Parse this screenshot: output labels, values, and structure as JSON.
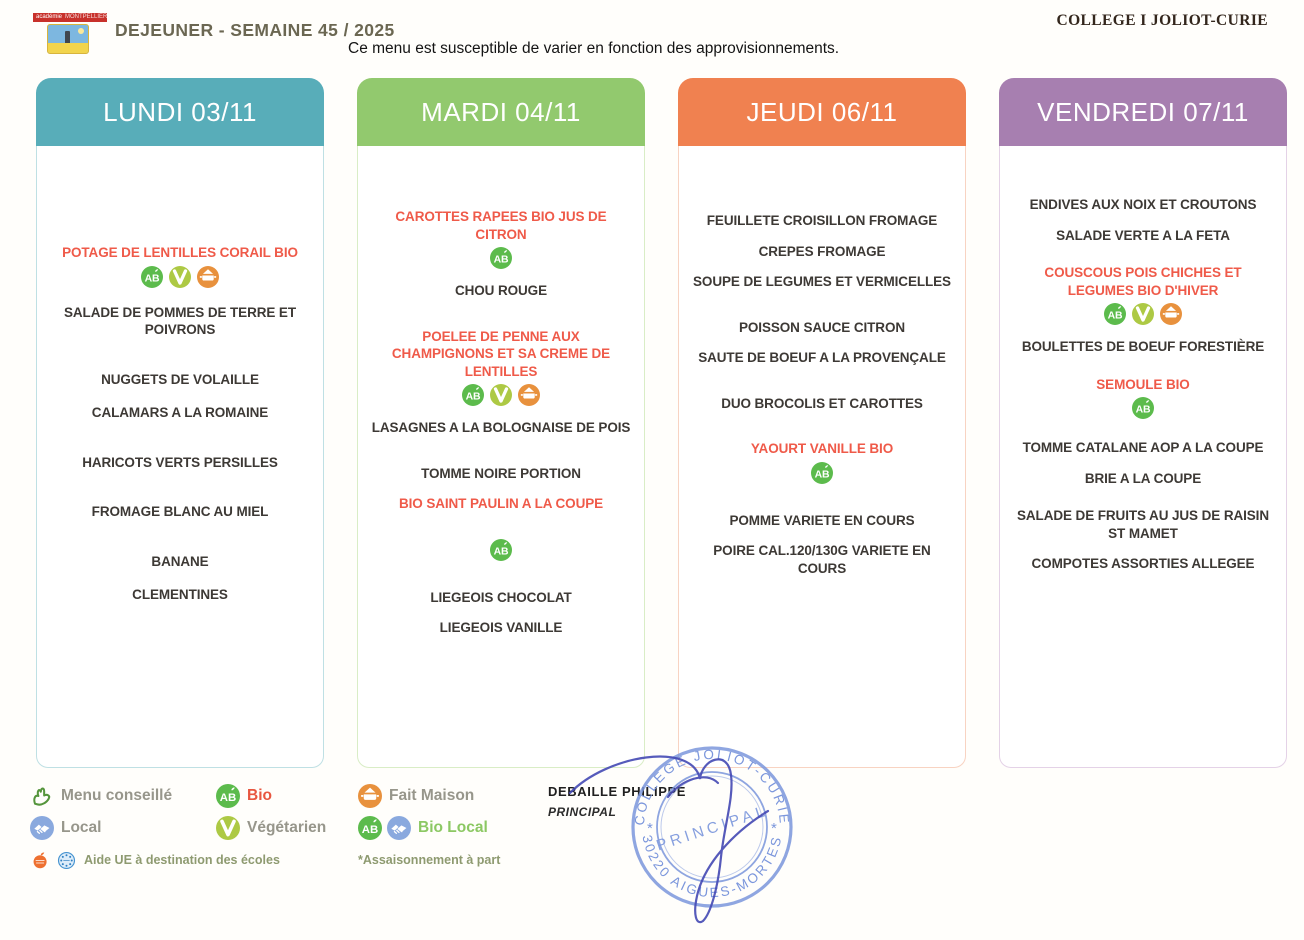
{
  "header": {
    "logo": {
      "academie": "académie",
      "ville": "MONTPELLIER"
    },
    "title": "DEJEUNER - SEMAINE 45 / 2025",
    "subtitle": "Ce menu est susceptible de varier en fonction des approvisionnements.",
    "school": "COLLEGE I JOLIOT-CURIE"
  },
  "colors": {
    "lundi_header": "#58adb9",
    "mardi_header": "#92c96e",
    "jeudi_header": "#f08150",
    "vendredi_header": "#a77fb0",
    "highlight_text": "#ef5a49",
    "normal_text": "#3d3935",
    "bio_icon": "#5cbb4c",
    "vegetarian_icon": "#adc944",
    "fait_maison_icon": "#e8913d",
    "local_icon": "#8aa9de",
    "peche_durable_icon": "#2d6db2",
    "stamp_blue": "#7b96dc"
  },
  "columns": [
    {
      "id": "lundi",
      "label": "LUNDI 03/11",
      "header_color": "#58adb9",
      "border_color": "#bfe0e4",
      "groups": [
        [
          {
            "text": "POTAGE DE LENTILLES CORAIL BIO",
            "highlight": true,
            "icons": [
              "bio",
              "vegetarian",
              "fait-maison"
            ]
          },
          {
            "text": "SALADE DE POMMES DE TERRE ET POIVRONS",
            "icons": [
              "vegetarian",
              "fait-maison"
            ],
            "icons_inline": true
          }
        ],
        [
          {
            "text": "NUGGETS DE VOLAILLE"
          },
          {
            "text": "CALAMARS A LA ROMAINE"
          }
        ],
        [
          {
            "text": "HARICOTS VERTS PERSILLES"
          }
        ],
        [
          {
            "text": "FROMAGE BLANC AU MIEL"
          }
        ],
        [
          {
            "text": "BANANE"
          },
          {
            "text": "CLEMENTINES"
          }
        ]
      ]
    },
    {
      "id": "mardi",
      "label": "MARDI 04/11",
      "header_color": "#92c96e",
      "border_color": "#d9edc6",
      "groups": [
        [
          {
            "text": "CAROTTES RAPEES BIO JUS DE CITRON",
            "highlight": true,
            "icons": [
              "bio"
            ]
          },
          {
            "text": "CHOU ROUGE"
          }
        ],
        [
          {
            "text": "POELEE DE PENNE AUX CHAMPIGNONS ET SA CREME DE LENTILLES",
            "highlight": true,
            "icons": [
              "bio",
              "vegetarian",
              "fait-maison"
            ]
          },
          {
            "text": "LASAGNES A LA BOLOGNAISE DE POIS",
            "icons": [
              "vegetarian",
              "fait-maison"
            ],
            "icons_inline": true
          }
        ],
        [
          {
            "text": "TOMME NOIRE PORTION"
          },
          {
            "text": "BIO SAINT PAULIN A LA COUPE",
            "highlight": true,
            "icons": [
              "bio"
            ],
            "icon_gap": true
          }
        ],
        [
          {
            "text": "LIEGEOIS CHOCOLAT"
          },
          {
            "text": "LIEGEOIS VANILLE"
          }
        ]
      ]
    },
    {
      "id": "jeudi",
      "label": "JEUDI 06/11",
      "header_color": "#f08150",
      "border_color": "#f8d3c2",
      "groups": [
        [
          {
            "text": "FEUILLETE CROISILLON FROMAGE"
          },
          {
            "text": "CREPES FROMAGE"
          },
          {
            "text": "SOUPE DE LEGUMES ET VERMICELLES"
          }
        ],
        [
          {
            "text": "POISSON SAUCE CITRON",
            "icons": [
              "peche-durable"
            ],
            "icons_inline": true
          },
          {
            "text": "SAUTE DE BOEUF A LA PROVENÇALE",
            "icons": [
              "fait-maison"
            ],
            "icons_inline": true
          }
        ],
        [
          {
            "text": "DUO BROCOLIS ET CAROTTES"
          }
        ],
        [
          {
            "text": "YAOURT VANILLE BIO",
            "highlight": true,
            "icons": [
              "bio"
            ]
          }
        ],
        [
          {
            "text": "POMME VARIETE EN COURS"
          },
          {
            "text": "POIRE CAL.120/130G VARIETE EN COURS"
          }
        ]
      ]
    },
    {
      "id": "vendredi",
      "label": "VENDREDI 07/11",
      "header_color": "#a77fb0",
      "border_color": "#e4d2e7",
      "groups": [
        [
          {
            "text": "ENDIVES AUX NOIX ET CROUTONS"
          },
          {
            "text": "SALADE VERTE A LA FETA",
            "icons": [
              "fait-maison",
              "aop"
            ],
            "icons_inline": true
          }
        ],
        [
          {
            "text": "COUSCOUS POIS CHICHES ET LEGUMES BIO D'HIVER",
            "highlight": true,
            "icons": [
              "bio",
              "vegetarian",
              "fait-maison"
            ]
          },
          {
            "text": "BOULETTES DE BOEUF FORESTIÈRE"
          }
        ],
        [
          {
            "text": "SEMOULE BIO",
            "highlight": true,
            "icons": [
              "bio"
            ]
          }
        ],
        [
          {
            "text": "TOMME CATALANE AOP A LA COUPE",
            "icons": [
              "aop"
            ],
            "icons_inline": true
          },
          {
            "text": "BRIE A LA COUPE"
          }
        ],
        [
          {
            "text": "SALADE DE FRUITS AU JUS DE RAISIN ST MAMET",
            "icons": [
              "local"
            ],
            "icons_inline": true
          },
          {
            "text": "COMPOTES ASSORTIES ALLEGEE"
          }
        ]
      ]
    }
  ],
  "legend": {
    "items": [
      {
        "id": "menu-conseille",
        "label": "Menu conseillé"
      },
      {
        "id": "bio",
        "label": "Bio",
        "label_color": "#e8563f"
      },
      {
        "id": "fait-maison",
        "label": "Fait Maison"
      },
      {
        "id": "local",
        "label": "Local"
      },
      {
        "id": "vegetarien",
        "label": "Végétarien"
      },
      {
        "id": "bio-local",
        "label": "Bio Local",
        "label_color": "#8cc863"
      },
      {
        "id": "aide-ue",
        "label": "Aide UE à destination des écoles"
      },
      {
        "id": "assaisonnement",
        "label": "*Assaisonnement à part"
      }
    ]
  },
  "signature": {
    "name": "DEBAILLE PHILIPPE",
    "role": "PRINCIPAL",
    "stamp": {
      "top": "COLLEGE JOLIOT-CURIE",
      "center": "PRINCIPAL",
      "bottom": "30220 AIGUES-MORTES"
    }
  }
}
